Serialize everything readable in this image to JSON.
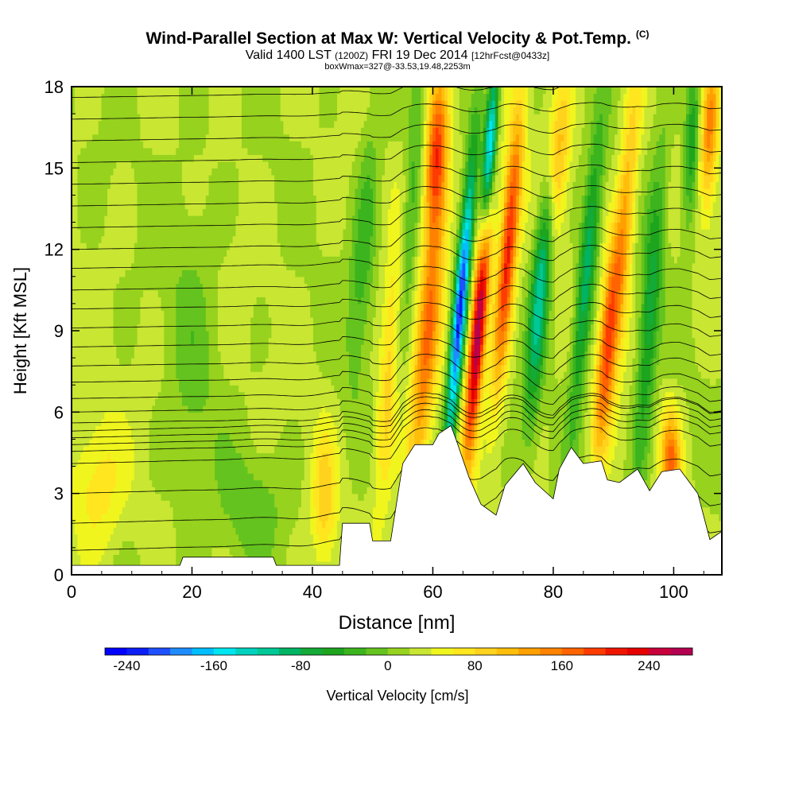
{
  "title": {
    "main": "Wind-Parallel Section at Max W: Vertical Velocity & Pot.Temp.",
    "copyright": "(C)",
    "valid_prefix": "Valid 1400 LST",
    "valid_z": "(1200Z)",
    "valid_date": "FRI 19 Dec 2014",
    "forecast": "[12hrFcst@0433z]",
    "box": "boxWmax=327@-33.53,19.48,2253m"
  },
  "chart_data": {
    "type": "heatmap",
    "xlabel": "Distance [nm]",
    "ylabel": "Height [Kft MSL]",
    "xlim": [
      0,
      108
    ],
    "ylim": [
      0,
      18
    ],
    "x_ticks": [
      "0",
      "20",
      "40",
      "60",
      "80",
      "100"
    ],
    "y_ticks": [
      "0",
      "3",
      "6",
      "9",
      "12",
      "15",
      "18"
    ],
    "colorbar": {
      "label": "Vertical Velocity [cm/s]",
      "tick_labels": [
        "-240",
        "-160",
        "-80",
        "0",
        "80",
        "160",
        "240"
      ],
      "min": -260,
      "max": 280,
      "step": 20,
      "colors": [
        "#0000ff",
        "#0a1ef5",
        "#1e50ff",
        "#1e8cff",
        "#00beff",
        "#00e6f0",
        "#00d2be",
        "#00c896",
        "#00b464",
        "#14aa37",
        "#1ea51e",
        "#3cb41e",
        "#64c31e",
        "#96d21e",
        "#c8e632",
        "#f0f51e",
        "#ffe61e",
        "#ffd21e",
        "#ffbe0a",
        "#ffa000",
        "#ff8200",
        "#ff6400",
        "#ff3c00",
        "#ee1600",
        "#e60000",
        "#c8003c",
        "#b40050"
      ]
    },
    "terrain_kft": [
      [
        0,
        0.35
      ],
      [
        4,
        0.35
      ],
      [
        18,
        0.35
      ],
      [
        18.5,
        0.65
      ],
      [
        33.5,
        0.65
      ],
      [
        34,
        0.35
      ],
      [
        44.5,
        0.35
      ],
      [
        45,
        1.9
      ],
      [
        49.5,
        1.9
      ],
      [
        50,
        1.25
      ],
      [
        53,
        1.25
      ],
      [
        55,
        4.1
      ],
      [
        57,
        4.8
      ],
      [
        60,
        4.8
      ],
      [
        61,
        5.2
      ],
      [
        63,
        5.5
      ],
      [
        64,
        4.9
      ],
      [
        66,
        3.6
      ],
      [
        68,
        2.6
      ],
      [
        70.5,
        2.2
      ],
      [
        72,
        3.3
      ],
      [
        75,
        4.1
      ],
      [
        77,
        3.4
      ],
      [
        80,
        2.8
      ],
      [
        81,
        3.9
      ],
      [
        83,
        4.7
      ],
      [
        85,
        4.1
      ],
      [
        88,
        4.2
      ],
      [
        89,
        3.5
      ],
      [
        91,
        3.4
      ],
      [
        94,
        3.9
      ],
      [
        96,
        3.1
      ],
      [
        98,
        3.8
      ],
      [
        101,
        3.9
      ],
      [
        104,
        3.0
      ],
      [
        106,
        1.3
      ],
      [
        107,
        1.45
      ],
      [
        108,
        1.6
      ]
    ],
    "w_features": [
      {
        "x": 4,
        "z": 3.2,
        "w": 55,
        "sx": 4.5,
        "sz": 2.5,
        "tilt": 0
      },
      {
        "x": 20,
        "z": 8,
        "w": -25,
        "sx": 4,
        "sz": 8,
        "tilt": 0
      },
      {
        "x": 30,
        "z": 2.5,
        "w": -35,
        "sx": 5,
        "sz": 2,
        "tilt": 0
      },
      {
        "x": 42,
        "z": 2.8,
        "w": 65,
        "sx": 2,
        "sz": 2.5,
        "tilt": 0
      },
      {
        "x": 48.5,
        "z": 12,
        "w": -55,
        "sx": 2,
        "sz": 5,
        "tilt": 0.3
      },
      {
        "x": 53,
        "z": 7.5,
        "w": 85,
        "sx": 1.8,
        "sz": 5,
        "tilt": 0.3
      },
      {
        "x": 56,
        "z": 12.5,
        "w": -60,
        "sx": 1.6,
        "sz": 6,
        "tilt": 0.35
      },
      {
        "x": 59,
        "z": 8.5,
        "w": 130,
        "sx": 2.0,
        "sz": 6,
        "tilt": 0.4
      },
      {
        "x": 60.5,
        "z": 15.5,
        "w": 165,
        "sx": 1.8,
        "sz": 3,
        "tilt": 0.2
      },
      {
        "x": 64.5,
        "z": 9.8,
        "w": -245,
        "sx": 1.1,
        "sz": 5.5,
        "tilt": 0.38
      },
      {
        "x": 67.5,
        "z": 9.0,
        "w": 260,
        "sx": 1.3,
        "sz": 4.5,
        "tilt": 0.35
      },
      {
        "x": 69.5,
        "z": 15.8,
        "w": -205,
        "sx": 1.0,
        "sz": 3,
        "tilt": 0.3
      },
      {
        "x": 72.5,
        "z": 12,
        "w": 190,
        "sx": 1.5,
        "sz": 5,
        "tilt": 0.35
      },
      {
        "x": 78,
        "z": 11,
        "w": -140,
        "sx": 1.5,
        "sz": 5,
        "tilt": 0.35
      },
      {
        "x": 80.5,
        "z": 15.5,
        "w": 110,
        "sx": 2.0,
        "sz": 3,
        "tilt": 0.3
      },
      {
        "x": 85.5,
        "z": 11,
        "w": -120,
        "sx": 1.4,
        "sz": 5,
        "tilt": 0.4
      },
      {
        "x": 89,
        "z": 8.5,
        "w": 165,
        "sx": 1.5,
        "sz": 4,
        "tilt": 0.35
      },
      {
        "x": 92,
        "z": 13,
        "w": 100,
        "sx": 1.5,
        "sz": 5,
        "tilt": 0.3
      },
      {
        "x": 96,
        "z": 9.5,
        "w": -90,
        "sx": 1.6,
        "sz": 6,
        "tilt": 0.3
      },
      {
        "x": 99.5,
        "z": 4.2,
        "w": 140,
        "sx": 1.6,
        "sz": 1.8,
        "tilt": 0
      },
      {
        "x": 103,
        "z": 16,
        "w": -85,
        "sx": 1.2,
        "sz": 3,
        "tilt": 0.2
      },
      {
        "x": 106,
        "z": 16.5,
        "w": 120,
        "sx": 1.4,
        "sz": 3,
        "tilt": 0.2
      }
    ],
    "isentrope_heights_kft": [
      0.9,
      1.9,
      3.0,
      4.1,
      4.55,
      4.8,
      5.05,
      5.3,
      5.6,
      6.0,
      6.5,
      7.1,
      7.7,
      8.4,
      9.1,
      9.8,
      10.5,
      11.3,
      12.0,
      12.8,
      13.6,
      14.4,
      15.2,
      16.0,
      16.8,
      17.6
    ]
  }
}
